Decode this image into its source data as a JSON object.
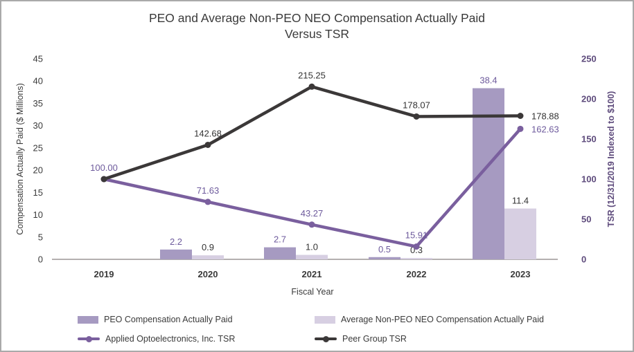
{
  "title": {
    "line1": "PEO and Average Non-PEO NEO Compensation Actually Paid",
    "line2": "Versus TSR"
  },
  "colors": {
    "title_text": "#3a3a3a",
    "axis_text": "#3a3a3a",
    "axis_line": "#b3b0b0",
    "right_axis_text": "#5e4b7c",
    "purple_label": "#6d5a9c",
    "dark_label": "#333333"
  },
  "chart_data": {
    "type": "combo-bar-line",
    "categories": [
      "2019",
      "2020",
      "2021",
      "2022",
      "2023"
    ],
    "xlabel": "Fiscal Year",
    "grid": false,
    "legend_position": "bottom",
    "left_axis": {
      "label": "Compensation Actually Paid ($ Millions)",
      "min": 0,
      "max": 45,
      "step": 5,
      "ticks": [
        0,
        5,
        10,
        15,
        20,
        25,
        30,
        35,
        40,
        45
      ]
    },
    "right_axis": {
      "label": "TSR (12/31/2019 Indexed to $100)",
      "min": 0,
      "max": 250,
      "step": 50,
      "ticks": [
        0,
        50,
        100,
        150,
        200,
        250
      ]
    },
    "bar_series": [
      {
        "name": "PEO Compensation Actually Paid",
        "key": "peo",
        "axis": "left",
        "color": "#a69ac1",
        "label_color": "#6d5a9c",
        "values": [
          null,
          2.2,
          2.7,
          0.5,
          38.4
        ],
        "labels": [
          null,
          "2.2",
          "2.7",
          "0.5",
          "38.4"
        ]
      },
      {
        "name": "Average Non-PEO NEO Compensation Actually Paid",
        "key": "neo",
        "axis": "left",
        "color": "#d7cfe2",
        "label_color": "#333333",
        "values": [
          null,
          0.9,
          1.0,
          0.3,
          11.4
        ],
        "labels": [
          null,
          "0.9",
          "1.0",
          "0.3",
          "11.4"
        ]
      }
    ],
    "line_series": [
      {
        "name": "Applied Optoelectronics, Inc. TSR",
        "key": "aaoi",
        "axis": "right",
        "color": "#7a5f9e",
        "label_color": "#6d5a9c",
        "values": [
          100.0,
          71.63,
          43.27,
          15.91,
          162.63
        ],
        "labels": [
          "100.00",
          "71.63",
          "43.27",
          "15.91",
          "162.63"
        ]
      },
      {
        "name": "Peer Group TSR",
        "key": "peer",
        "axis": "right",
        "color": "#3b3838",
        "label_color": "#333333",
        "values": [
          100.0,
          142.68,
          215.25,
          178.07,
          178.88
        ],
        "labels": [
          null,
          "142.68",
          "215.25",
          "178.07",
          "178.88"
        ]
      }
    ]
  }
}
